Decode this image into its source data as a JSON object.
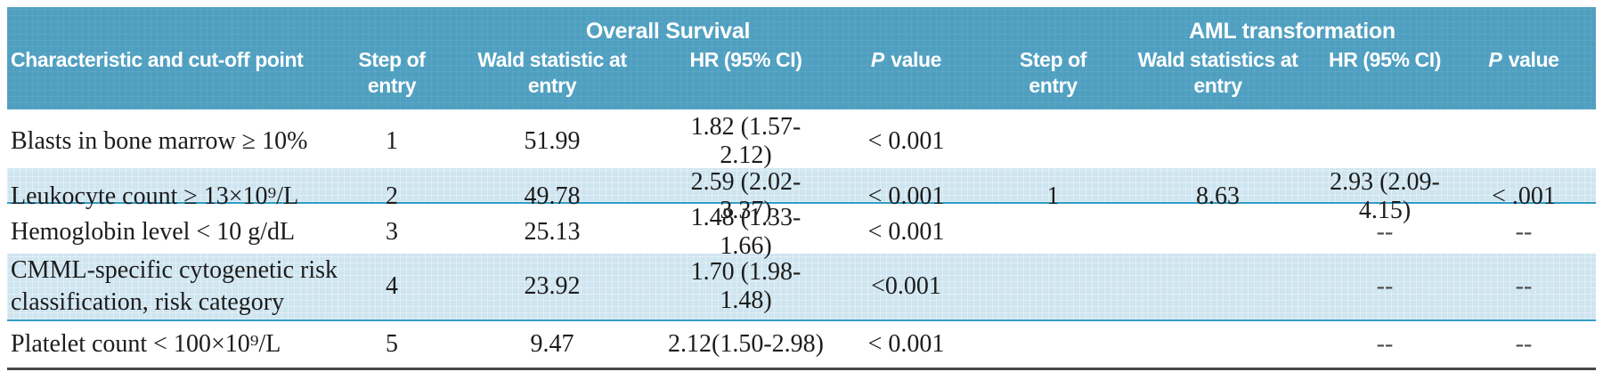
{
  "table": {
    "header": {
      "characteristic": "Characteristic and cut-off point",
      "groups": [
        {
          "label": "Overall Survival"
        },
        {
          "label": "AML transformation"
        }
      ],
      "os": [
        "Step of entry",
        "Wald statistic at entry",
        "HR (95% CI)"
      ],
      "aml": [
        "Step of entry",
        "Wald statistics at entry",
        "HR (95% CI)"
      ],
      "p_label": {
        "italic": "P",
        "rest": "value"
      }
    },
    "colors": {
      "header_teal": "#4f9fc0",
      "row_highlight_blue": "#cfe5f0",
      "separator_blue": "#2f9cc6",
      "bottom_rule_gray": "#474747"
    },
    "rows": [
      {
        "characteristic": "Blasts in bone marrow ≥ 10%",
        "os": {
          "step": "1",
          "wald": "51.99",
          "hr": "1.82 (1.57-2.12)",
          "p": "< 0.001"
        },
        "aml": {
          "step": "",
          "wald": "",
          "hr": "",
          "p": ""
        }
      },
      {
        "characteristic": "Leukocyte count ≥ 13×10⁹/L",
        "os": {
          "step": "2",
          "wald": "49.78",
          "hr": "2.59 (2.02-3.37)",
          "p": "< 0.001"
        },
        "aml": {
          "step": "1",
          "wald": "8.63",
          "hr": "2.93 (2.09-4.15)",
          "p": "< .001"
        }
      },
      {
        "characteristic": "Hemoglobin level < 10 g/dL",
        "os": {
          "step": "3",
          "wald": "25.13",
          "hr": "1.48 (1.33-1.66)",
          "p": "< 0.001"
        },
        "aml": {
          "step": "",
          "wald": "",
          "hr": "--",
          "p": "--"
        }
      },
      {
        "characteristic": "CMML-specific cytogenetic risk classification, risk category",
        "os": {
          "step": "4",
          "wald": "23.92",
          "hr": "1.70 (1.98-1.48)",
          "p": "<0.001"
        },
        "aml": {
          "step": "",
          "wald": "",
          "hr": "--",
          "p": "--"
        }
      },
      {
        "characteristic": "Platelet count < 100×10⁹/L",
        "os": {
          "step": "5",
          "wald": "9.47",
          "hr": "2.12(1.50-2.98)",
          "p": "< 0.001"
        },
        "aml": {
          "step": "",
          "wald": "",
          "hr": "--",
          "p": "--"
        }
      }
    ]
  }
}
